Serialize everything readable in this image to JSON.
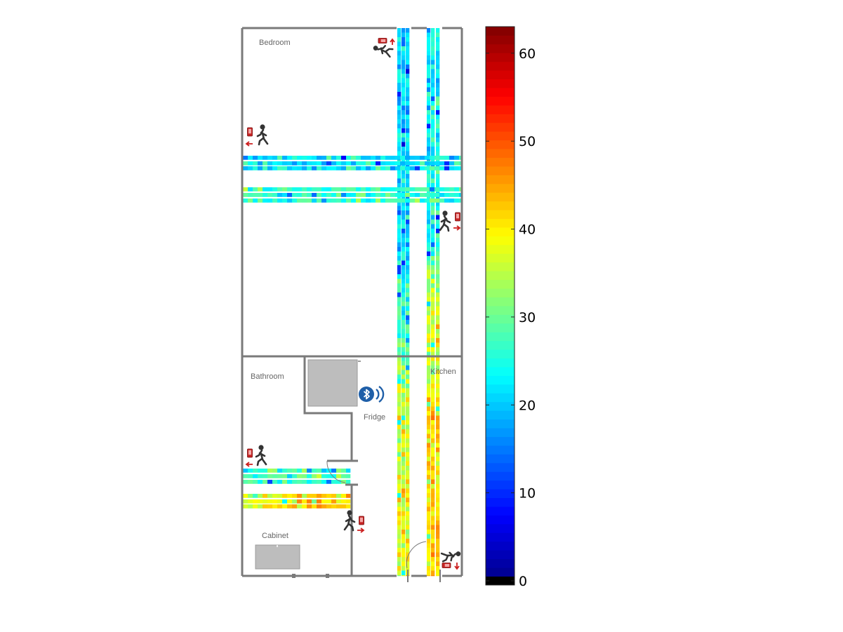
{
  "rooms": {
    "bedroom": "Bedroom",
    "bathroom": "Bathroom",
    "kitchen": "Kitchen",
    "fridge": "Fridge",
    "cabinet": "Cabinet"
  },
  "icons": {
    "person": "walking-person-icon",
    "phone": "phone-icon",
    "bluetooth": "bluetooth-beacon-icon"
  },
  "colors": {
    "wall": "#7a7a7a",
    "furniture": "#bdbdbd",
    "bluetooth": "#1f5fa8",
    "marker": "#cc1f1f"
  },
  "chart_data": {
    "type": "heatmap",
    "title": "",
    "colormap": "jet",
    "clim": [
      0,
      63.5
    ],
    "colorbar_ticks": [
      0,
      10,
      20,
      30,
      40,
      50,
      60
    ],
    "colorbar_tick_labels": [
      "0",
      "10",
      "20",
      "30",
      "40",
      "50",
      "60"
    ],
    "paths": [
      {
        "id": "vertical-strip-a",
        "orientation": "vertical",
        "typical_value_upper": 21,
        "typical_value_lower": 38
      },
      {
        "id": "vertical-strip-b",
        "orientation": "vertical",
        "typical_value_upper": 24,
        "typical_value_lower": 42
      },
      {
        "id": "bedroom-horizontal-upper",
        "orientation": "horizontal",
        "typical_value": 23
      },
      {
        "id": "bedroom-horizontal-lower",
        "orientation": "horizontal",
        "typical_value": 27
      },
      {
        "id": "bathroom-horizontal-upper",
        "orientation": "horizontal",
        "typical_value": 28
      },
      {
        "id": "bathroom-horizontal-lower",
        "orientation": "horizontal",
        "typical_value": 39
      }
    ]
  }
}
